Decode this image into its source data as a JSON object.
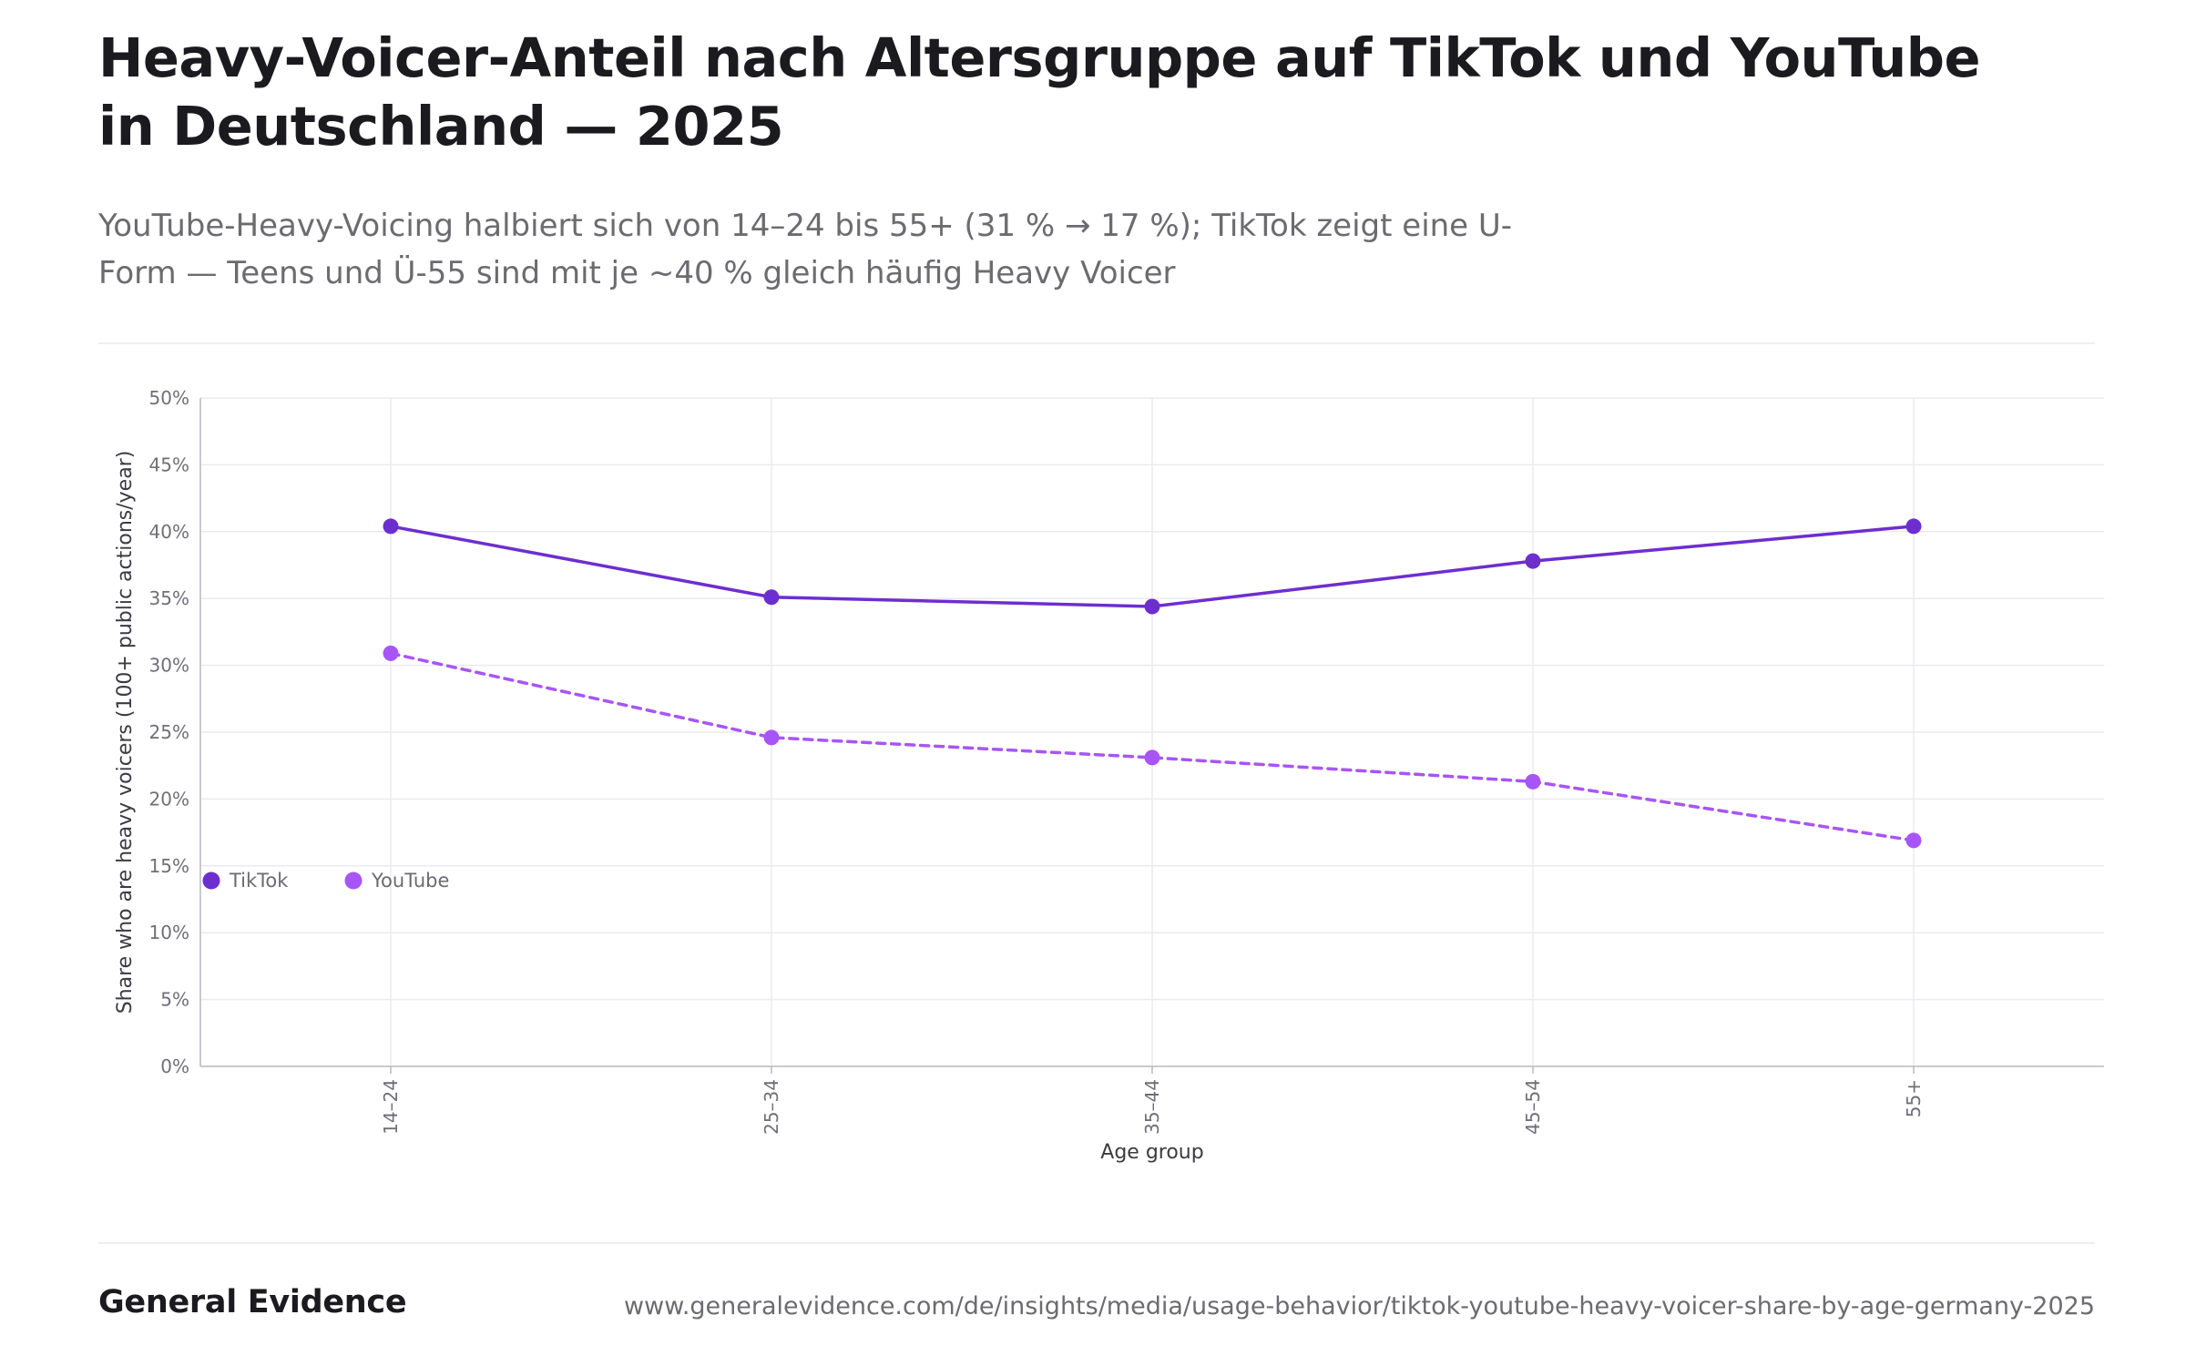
{
  "header": {
    "title": "Heavy-Voicer-Anteil nach Altersgruppe auf TikTok und YouTube in Deutschland — 2025",
    "subtitle": "YouTube-Heavy-Voicing halbiert sich von 14–24 bis 55+ (31 % → 17 %); TikTok zeigt eine U-Form — Teens und Ü-55 sind mit je ~40 % gleich häufig Heavy Voicer"
  },
  "chart_data": {
    "type": "line",
    "categories": [
      "14–24",
      "25–34",
      "35–44",
      "45–54",
      "55+"
    ],
    "series": [
      {
        "name": "TikTok",
        "values": [
          40.4,
          35.1,
          34.4,
          37.8,
          40.4
        ],
        "color": "#6d2ed0",
        "dashed": false
      },
      {
        "name": "YouTube",
        "values": [
          30.9,
          24.6,
          23.1,
          21.3,
          16.9
        ],
        "color": "#a855f7",
        "dashed": true
      }
    ],
    "xlabel": "Age group",
    "ylabel": "Share who are heavy voicers (100+ public actions/year)",
    "ylim": [
      0,
      50
    ],
    "yticks": [
      0,
      5,
      10,
      15,
      20,
      25,
      30,
      35,
      40,
      45,
      50
    ],
    "ytick_suffix": "%",
    "grid": true,
    "legend_position": "bottom-left"
  },
  "footer": {
    "brand": "General Evidence",
    "source_url": "www.generalevidence.com/de/insights/media/usage-behavior/tiktok-youtube-heavy-voicer-share-by-age-germany-2025"
  }
}
